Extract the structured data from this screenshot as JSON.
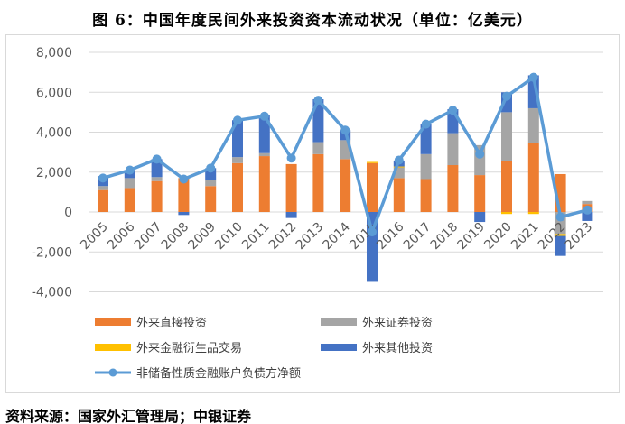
{
  "title": "图 6：中国年度民间外来投资资本流动状况（单位：亿美元）",
  "source": "资料来源：国家外汇管理局；中银证券",
  "chart_data": {
    "type": "bar",
    "stacked": true,
    "categories": [
      "2005",
      "2006",
      "2007",
      "2008",
      "2009",
      "2010",
      "2011",
      "2012",
      "2013",
      "2014",
      "2015",
      "2016",
      "2017",
      "2018",
      "2019",
      "2020",
      "2021",
      "2022",
      "2023"
    ],
    "ylim": [
      -4000,
      8000
    ],
    "yticks": [
      "-4,000",
      "-2,000",
      "0",
      "2,000",
      "4,000",
      "6,000",
      "8,000"
    ],
    "ytick_values": [
      -4000,
      -2000,
      0,
      2000,
      4000,
      6000,
      8000
    ],
    "grid": true,
    "legend_position": "bottom",
    "series": [
      {
        "name": "外来直接投资",
        "kind": "bar",
        "color": "#ED7D31",
        "values": [
          1100,
          1200,
          1550,
          1700,
          1300,
          2450,
          2800,
          2400,
          2900,
          2650,
          2450,
          1700,
          1650,
          2350,
          1850,
          2550,
          3450,
          1900,
          400
        ]
      },
      {
        "name": "外来证券投资",
        "kind": "bar",
        "color": "#A5A5A5",
        "values": [
          200,
          500,
          200,
          0,
          300,
          300,
          150,
          0,
          600,
          950,
          0,
          550,
          1250,
          1600,
          1500,
          2450,
          1750,
          -1100,
          150
        ]
      },
      {
        "name": "外来金融衍生品交易",
        "kind": "bar",
        "color": "#FFC000",
        "values": [
          0,
          0,
          0,
          0,
          0,
          0,
          0,
          0,
          0,
          0,
          60,
          30,
          0,
          0,
          0,
          -100,
          -100,
          -100,
          0
        ]
      },
      {
        "name": "外来其他投资",
        "kind": "bar",
        "color": "#4472C4",
        "values": [
          500,
          400,
          900,
          -150,
          600,
          1850,
          1900,
          -300,
          2150,
          500,
          -3500,
          300,
          1500,
          1200,
          -500,
          1000,
          1650,
          -1000,
          -450
        ]
      },
      {
        "name": "非储备性质金融账户负债方净额",
        "kind": "line",
        "color": "#5B9BD5",
        "values": [
          1700,
          2100,
          2650,
          1650,
          2200,
          4600,
          4800,
          2700,
          5600,
          4100,
          -1000,
          2600,
          4400,
          5100,
          2900,
          5800,
          6750,
          -250,
          100
        ]
      }
    ]
  }
}
